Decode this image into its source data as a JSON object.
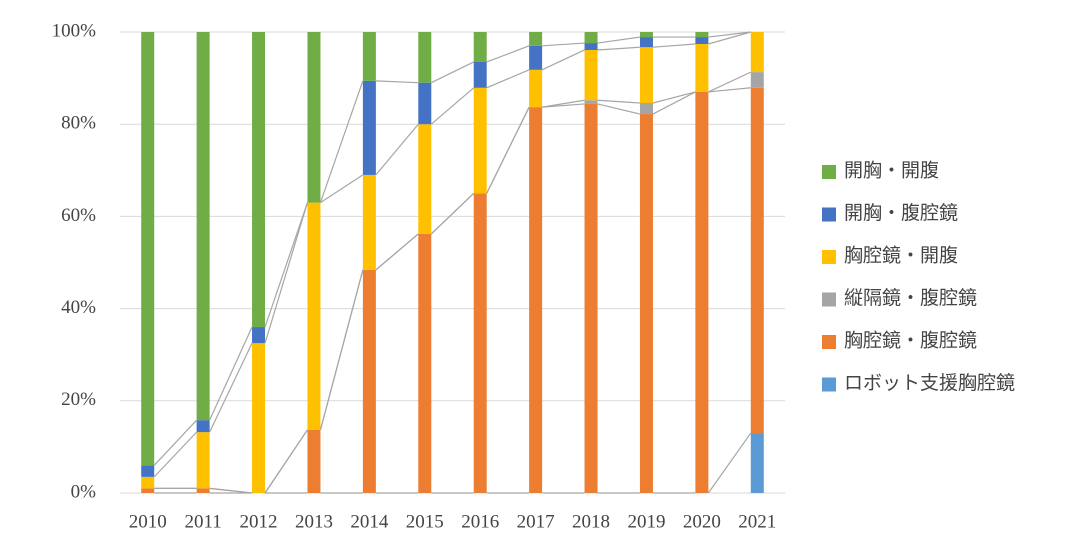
{
  "chart_data": {
    "type": "stacked-bar",
    "categories": [
      "2010",
      "2011",
      "2012",
      "2013",
      "2014",
      "2015",
      "2016",
      "2017",
      "2018",
      "2019",
      "2020",
      "2021"
    ],
    "series": [
      {
        "name": "開胸・開腹",
        "color": "#70ad47",
        "values": [
          94,
          84.2,
          64,
          37,
          10.6,
          11,
          6.5,
          3,
          2.4,
          1.1,
          1.1,
          0
        ]
      },
      {
        "name": "開胸・腹腔鏡",
        "color": "#4472c4",
        "values": [
          2.5,
          2.6,
          3.5,
          0,
          20.4,
          9,
          5.6,
          5.2,
          1.5,
          2.2,
          1.5,
          0
        ]
      },
      {
        "name": "胸腔鏡・開腹",
        "color": "#ffc000",
        "values": [
          2.5,
          12.2,
          32.5,
          49.3,
          20.6,
          23.8,
          22.9,
          8.1,
          10.9,
          12.1,
          10.4,
          8.7
        ]
      },
      {
        "name": "縦隔鏡・腹腔鏡",
        "color": "#a5a5a5",
        "values": [
          0,
          0,
          0,
          0,
          0,
          0,
          0,
          0,
          0.8,
          2.4,
          0,
          3.4
        ]
      },
      {
        "name": "胸腔鏡・腹腔鏡",
        "color": "#ed7d31",
        "values": [
          1,
          1,
          0,
          13.7,
          48.4,
          56.2,
          65,
          83.7,
          84.4,
          82.2,
          87,
          74.9
        ]
      },
      {
        "name": "ロボット支援胸腔鏡",
        "color": "#5b9bd5",
        "values": [
          0,
          0,
          0,
          0,
          0,
          0,
          0,
          0,
          0,
          0,
          0,
          13
        ]
      }
    ],
    "ylim": [
      0,
      100
    ],
    "yticks": [
      {
        "value": 0,
        "label": "0%"
      },
      {
        "value": 20,
        "label": "20%"
      },
      {
        "value": 40,
        "label": "40%"
      },
      {
        "value": 60,
        "label": "60%"
      },
      {
        "value": 80,
        "label": "80%"
      },
      {
        "value": 100,
        "label": "100%"
      }
    ],
    "grid": true
  }
}
